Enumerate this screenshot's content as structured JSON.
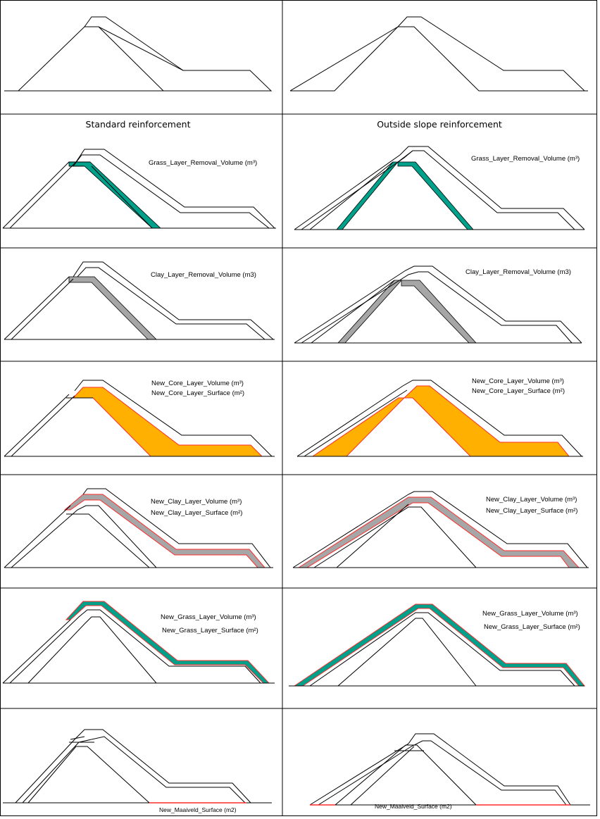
{
  "headers": {
    "standard": "Standard reinforcement",
    "outside": "Outside slope reinforcement"
  },
  "labels": {
    "standard_grass_removal": "Grass_Layer_Removal_Volume (m³)",
    "outside_grass_removal": "Grass_Layer_Removal_Volume (m³)",
    "standard_clay_removal": "Clay_Layer_Removal_Volume (m3)",
    "outside_clay_removal": "Clay_Layer_Removal_Volume (m3)",
    "standard_core_volume": "New_Core_Layer_Volume (m³)",
    "standard_core_surface": "New_Core_Layer_Surface (m²)",
    "outside_core_volume": "New_Core_Layer_Volume (m³)",
    "outside_core_surface": "New_Core_Layer_Surface (m²)",
    "standard_clay_volume": "New_Clay_Layer_Volume (m³)",
    "standard_clay_surface": "New_Clay_Layer_Surface (m²)",
    "outside_clay_volume": "New_Clay_Layer_Volume (m³)",
    "outside_clay_surface": "New_Clay_Layer_Surface (m²)",
    "standard_grass_volume": "New_Grass_Layer_Volume (m³)",
    "standard_grass_surface": "New_Grass_Layer_Surface (m²)",
    "outside_grass_volume": "New_Grass_Layer_Volume (m³)",
    "outside_grass_surface": "New_Grass_Layer_Surface (m²)",
    "standard_maaiveld": "New_Maaiveld_Surface (m2)",
    "outside_maaiveld": "New_Maaiveld_Surface (m2)"
  },
  "colors": {
    "line": "#000000",
    "grass_layer": "#00a08a",
    "clay_layer": "#a6a6a6",
    "core_layer": "#ffb000",
    "outline_new": "#ff2a2a"
  }
}
